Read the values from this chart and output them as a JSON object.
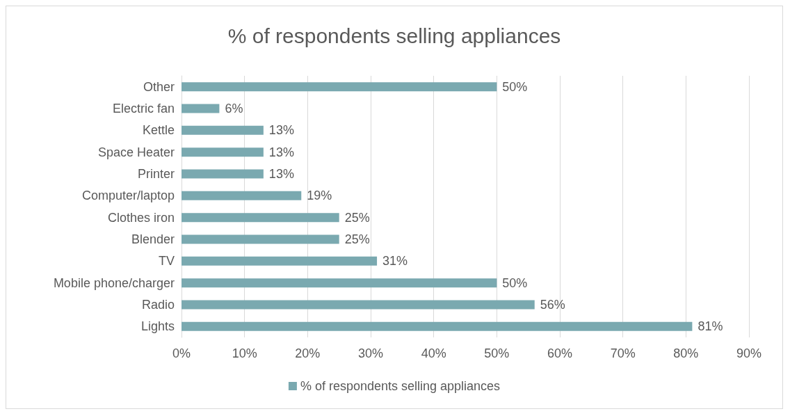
{
  "chart_data": {
    "type": "bar",
    "orientation": "horizontal",
    "title": "% of respondents selling appliances",
    "categories": [
      "Other",
      "Electric fan",
      "Kettle",
      "Space Heater",
      "Printer",
      "Computer/laptop",
      "Clothes iron",
      "Blender",
      "TV",
      "Mobile phone/charger",
      "Radio",
      "Lights"
    ],
    "series": [
      {
        "name": "% of respondents selling appliances",
        "color": "#7aa9b0",
        "values": [
          50,
          6,
          13,
          13,
          13,
          19,
          25,
          25,
          31,
          50,
          56,
          81
        ],
        "value_labels": [
          "50%",
          "6%",
          "13%",
          "13%",
          "13%",
          "19%",
          "25%",
          "25%",
          "31%",
          "50%",
          "56%",
          "81%"
        ]
      }
    ],
    "xlim": [
      0,
      90
    ],
    "xticks": [
      {
        "value": 0,
        "label": "0%"
      },
      {
        "value": 10,
        "label": "10%"
      },
      {
        "value": 20,
        "label": "20%"
      },
      {
        "value": 30,
        "label": "30%"
      },
      {
        "value": 40,
        "label": "40%"
      },
      {
        "value": 50,
        "label": "50%"
      },
      {
        "value": 60,
        "label": "60%"
      },
      {
        "value": 70,
        "label": "70%"
      },
      {
        "value": 80,
        "label": "80%"
      },
      {
        "value": 90,
        "label": "90%"
      }
    ],
    "grid": "x",
    "legend": "bottom"
  }
}
